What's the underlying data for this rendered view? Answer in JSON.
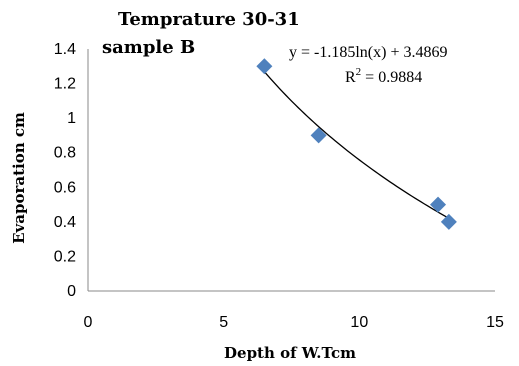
{
  "chart_data": {
    "type": "scatter",
    "title_line1": "Temprature 30-31",
    "title_line2": "sample B",
    "xlabel": "Depth of W.Tcm",
    "ylabel": "Evaporation cm",
    "xlim": [
      0,
      15
    ],
    "ylim": [
      0,
      1.4
    ],
    "x_ticks": [
      "0",
      "5",
      "10",
      "15"
    ],
    "y_ticks": [
      "0",
      "0.2",
      "0.4",
      "0.6",
      "0.8",
      "1",
      "1.2",
      "1.4"
    ],
    "points": [
      {
        "x": 6.5,
        "y": 1.3
      },
      {
        "x": 8.5,
        "y": 0.9
      },
      {
        "x": 12.9,
        "y": 0.5
      },
      {
        "x": 13.3,
        "y": 0.4
      }
    ],
    "trendline": {
      "type": "logarithmic",
      "a": -1.185,
      "b": 3.4869,
      "equation": "y = -1.185ln(x) + 3.4869",
      "r2_prefix": "R",
      "r2_sup": "2",
      "r2_value": " = 0.9884"
    },
    "marker_color": "#4f81bd",
    "grid": false
  }
}
